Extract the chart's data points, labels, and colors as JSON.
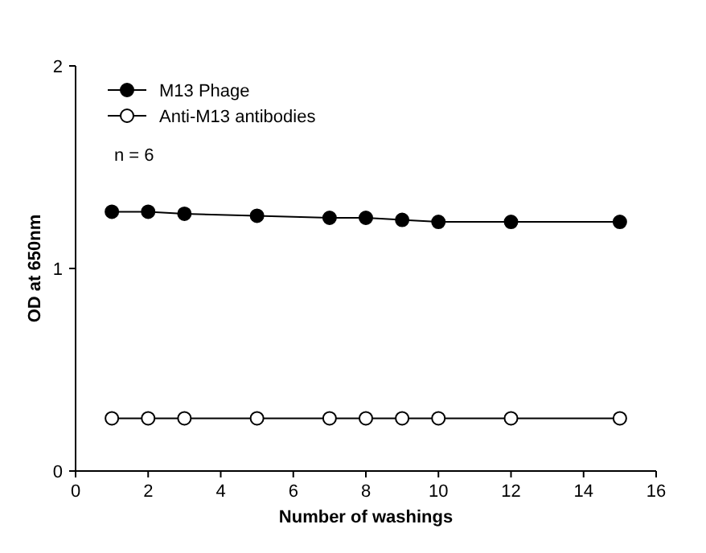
{
  "chart_data": {
    "type": "line",
    "xlabel": "Number of washings",
    "ylabel": "OD at 650nm",
    "x": [
      1,
      2,
      3,
      5,
      7,
      8,
      9,
      10,
      12,
      15
    ],
    "series": [
      {
        "name": "M13 Phage",
        "color": "#000000",
        "marker": "circle",
        "values": [
          1.28,
          1.28,
          1.27,
          1.26,
          1.25,
          1.25,
          1.24,
          1.23,
          1.23,
          1.23
        ]
      },
      {
        "name": "Anti-M13 antibodies",
        "color": "#000000",
        "marker": "circle",
        "values": [
          0.26,
          0.26,
          0.26,
          0.26,
          0.26,
          0.26,
          0.26,
          0.26,
          0.26,
          0.26
        ]
      }
    ],
    "xlim": [
      0,
      16
    ],
    "xticks": [
      0,
      2,
      4,
      6,
      8,
      10,
      12,
      14,
      16
    ],
    "ylim": [
      0,
      2
    ],
    "yticks": [
      0,
      1,
      2
    ],
    "grid": false,
    "legend": "top left",
    "annotations": [
      "n = 6"
    ]
  }
}
